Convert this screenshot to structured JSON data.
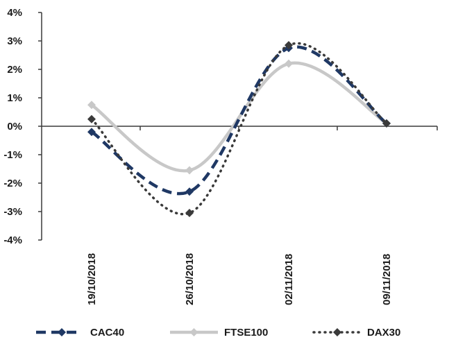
{
  "chart_data": {
    "type": "line",
    "categories": [
      "19/10/2018",
      "26/10/2018",
      "02/11/2018",
      "09/11/2018"
    ],
    "ylim": [
      -4,
      4
    ],
    "yticks": [
      -4,
      -3,
      -2,
      -1,
      0,
      1,
      2,
      3,
      4
    ],
    "ytick_labels": [
      "-4%",
      "-3%",
      "-2%",
      "-1%",
      "0%",
      "1%",
      "2%",
      "3%",
      "4%"
    ],
    "legend_position": "bottom",
    "grid": false,
    "series": [
      {
        "name": "CAC40",
        "values": [
          -0.2,
          -2.3,
          2.75,
          0.1
        ],
        "color": "#1f3864",
        "style": "dashed",
        "marker": "diamond"
      },
      {
        "name": "FTSE100",
        "values": [
          0.75,
          -1.55,
          2.2,
          0.1
        ],
        "color": "#c8c8c8",
        "style": "solid",
        "marker": "diamond"
      },
      {
        "name": "DAX30",
        "values": [
          0.25,
          -3.05,
          2.85,
          0.1
        ],
        "color": "#3a3a3a",
        "style": "dotted",
        "marker": "diamond"
      }
    ]
  }
}
